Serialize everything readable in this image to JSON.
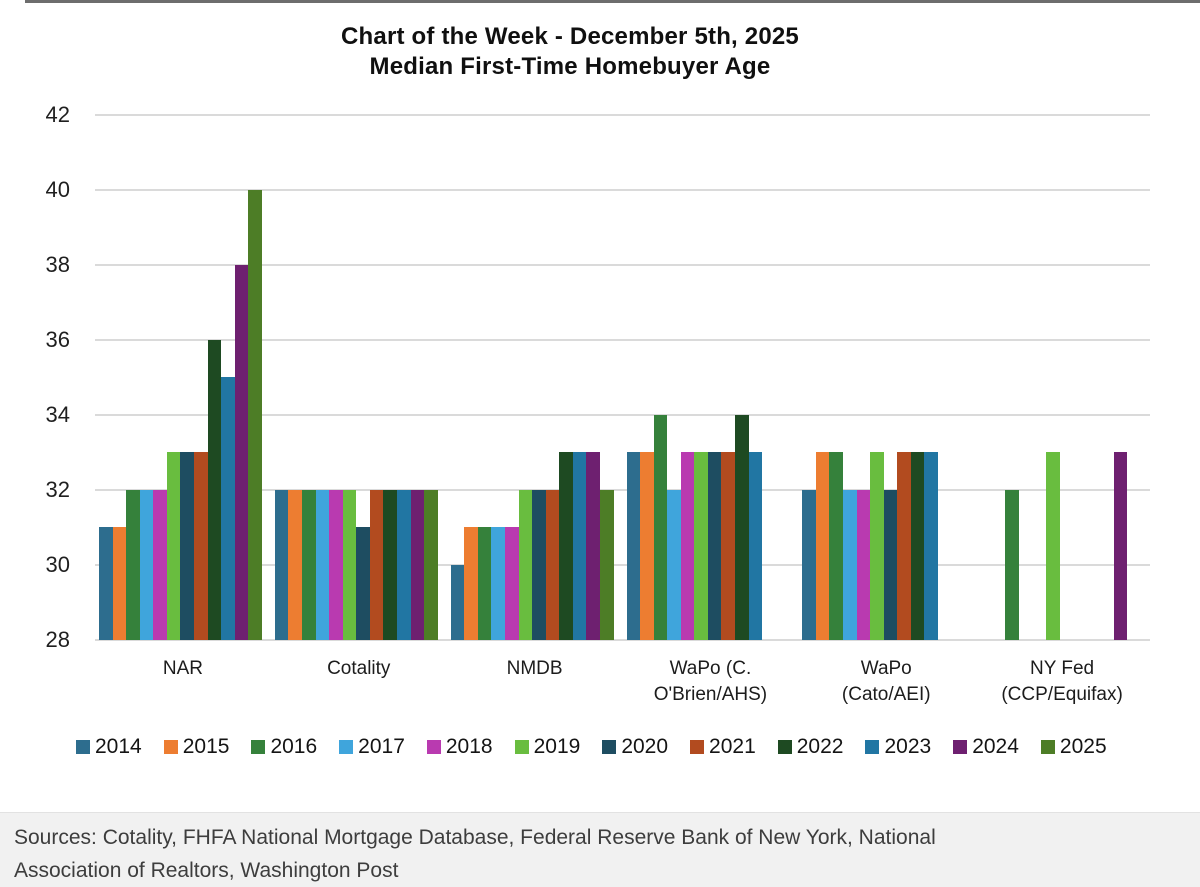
{
  "chart_data": {
    "type": "bar",
    "title_line1": "Chart of the Week - December 5th, 2025",
    "title_line2": "Median First-Time Homebuyer Age",
    "xlabel": "",
    "ylabel": "",
    "ylim": [
      28,
      42
    ],
    "ytick_step": 2,
    "grid": true,
    "legend_position": "bottom",
    "categories": [
      "NAR",
      "Cotality",
      "NMDB",
      "WaPo (C. O'Brien/AHS)",
      "WaPo (Cato/AEI)",
      "NY Fed (CCP/Equifax)"
    ],
    "category_labels": [
      [
        "NAR"
      ],
      [
        "Cotality"
      ],
      [
        "NMDB"
      ],
      [
        "WaPo (C.",
        "O'Brien/AHS)"
      ],
      [
        "WaPo",
        "(Cato/AEI)"
      ],
      [
        "NY Fed",
        "(CCP/Equifax)"
      ]
    ],
    "series": [
      {
        "name": "2014",
        "color": "#2d6d8e",
        "values": [
          31,
          32,
          30,
          33,
          32,
          null
        ]
      },
      {
        "name": "2015",
        "color": "#ed7d31",
        "values": [
          31,
          32,
          31,
          33,
          33,
          null
        ]
      },
      {
        "name": "2016",
        "color": "#35813b",
        "values": [
          32,
          32,
          31,
          34,
          33,
          32
        ]
      },
      {
        "name": "2017",
        "color": "#3fa5dc",
        "values": [
          32,
          32,
          31,
          32,
          32,
          null
        ]
      },
      {
        "name": "2018",
        "color": "#b93ab0",
        "values": [
          32,
          32,
          31,
          33,
          32,
          null
        ]
      },
      {
        "name": "2019",
        "color": "#69bd3f",
        "values": [
          33,
          32,
          32,
          33,
          33,
          33
        ]
      },
      {
        "name": "2020",
        "color": "#1e4d61",
        "values": [
          33,
          31,
          32,
          33,
          32,
          null
        ]
      },
      {
        "name": "2021",
        "color": "#b24b1f",
        "values": [
          33,
          32,
          32,
          33,
          33,
          null
        ]
      },
      {
        "name": "2022",
        "color": "#1e4a22",
        "values": [
          36,
          32,
          33,
          34,
          33,
          null
        ]
      },
      {
        "name": "2023",
        "color": "#2176a3",
        "values": [
          35,
          32,
          33,
          33,
          33,
          null
        ]
      },
      {
        "name": "2024",
        "color": "#6e2070",
        "values": [
          38,
          32,
          33,
          null,
          null,
          33
        ]
      },
      {
        "name": "2025",
        "color": "#4d7d26",
        "values": [
          40,
          32,
          32,
          null,
          null,
          null
        ]
      }
    ]
  },
  "footer": {
    "line1": "Sources: Cotality, FHFA National Mortgage Database, Federal Reserve Bank of New York, National",
    "line2": "Association of Realtors, Washington Post"
  },
  "colors": {
    "grid": "#dadada",
    "footer_bg": "#f1f1f1",
    "title_text": "#101010",
    "axis_text": "#1f1f1f"
  }
}
